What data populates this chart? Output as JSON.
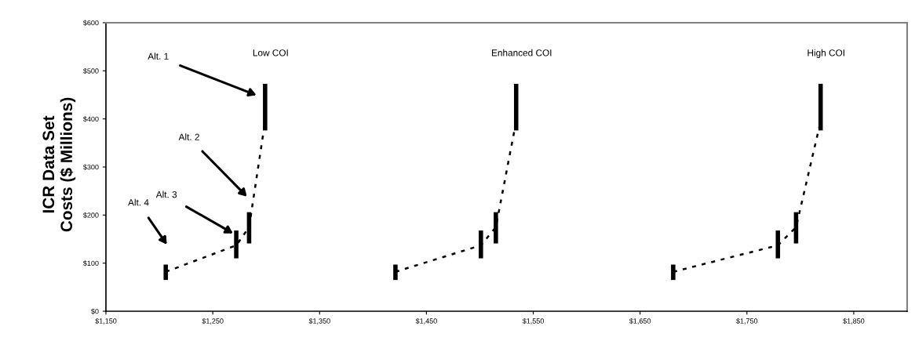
{
  "chart_data": {
    "type": "line",
    "ylabel": "ICR Data Set\nCosts ($ Millions)",
    "xlim": [
      1150,
      1900
    ],
    "xticks": [
      {
        "value": 1150,
        "label": "$1,150"
      },
      {
        "value": 1250,
        "label": "$1,250"
      },
      {
        "value": 1350,
        "label": "$1,350"
      },
      {
        "value": 1450,
        "label": "$1,450"
      },
      {
        "value": 1550,
        "label": "$1,550"
      },
      {
        "value": 1650,
        "label": "$1,650"
      },
      {
        "value": 1750,
        "label": "$1,750"
      },
      {
        "value": 1850,
        "label": "$1,850"
      }
    ],
    "ylim": [
      0,
      600
    ],
    "yticks": [
      {
        "value": 0,
        "label": "$0"
      },
      {
        "value": 100,
        "label": "$100"
      },
      {
        "value": 200,
        "label": "$200"
      },
      {
        "value": 300,
        "label": "$300"
      },
      {
        "value": 400,
        "label": "$400"
      },
      {
        "value": 500,
        "label": "$500"
      },
      {
        "value": 600,
        "label": "$600"
      }
    ],
    "grid": false,
    "legend": false,
    "marker": "none",
    "line_style": "dotted",
    "series": [
      {
        "color": "#000000",
        "x": [
          1206,
          1272,
          1284,
          1299
        ],
        "values": [
          82,
          137,
          175,
          395
        ],
        "errors": [
          [
            65,
            97
          ],
          [
            110,
            168
          ],
          [
            141,
            206
          ],
          [
            376,
            473
          ]
        ]
      },
      {
        "color": "#000000",
        "x": [
          1421,
          1501,
          1515,
          1534
        ],
        "values": [
          82,
          137,
          175,
          395
        ],
        "errors": [
          [
            65,
            97
          ],
          [
            110,
            168
          ],
          [
            141,
            206
          ],
          [
            376,
            473
          ]
        ]
      },
      {
        "color": "#000000",
        "x": [
          1681,
          1779,
          1796,
          1819
        ],
        "values": [
          82,
          137,
          175,
          395
        ],
        "errors": [
          [
            65,
            97
          ],
          [
            110,
            168
          ],
          [
            141,
            206
          ],
          [
            376,
            473
          ]
        ]
      }
    ],
    "annotations": [
      "Low COI",
      "Enhanced COI",
      "High COI",
      "Alt. 1",
      "Alt. 2",
      "Alt. 3",
      "Alt. 4"
    ]
  }
}
